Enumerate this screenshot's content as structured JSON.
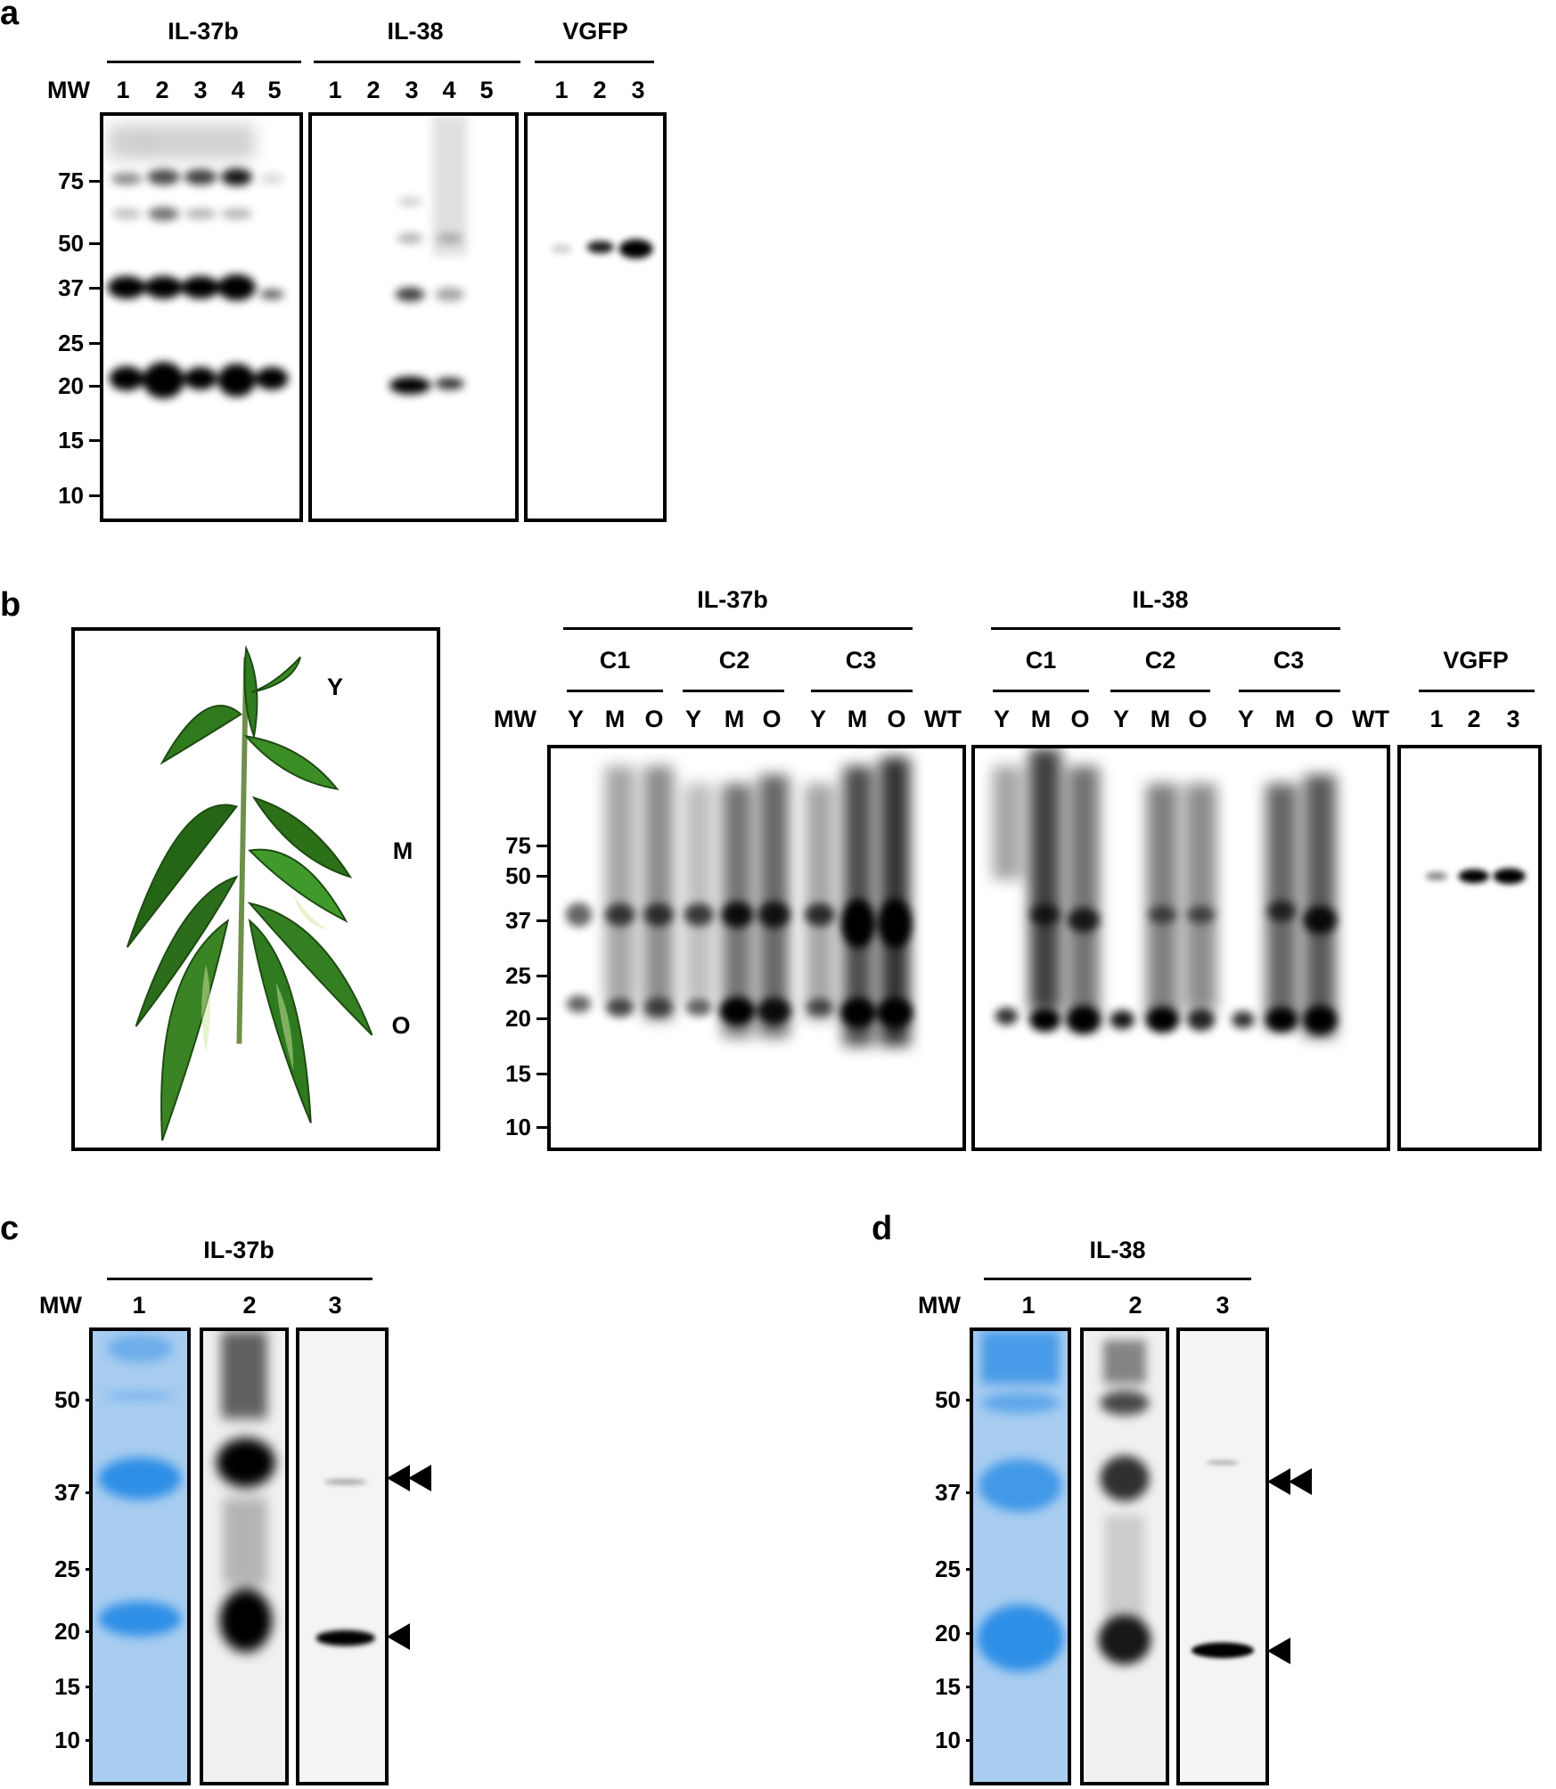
{
  "panel_a": {
    "label": "a",
    "mw_label": "MW",
    "mw_markers": [
      "75",
      "50",
      "37",
      "25",
      "20",
      "15",
      "10"
    ],
    "groups": [
      {
        "name": "IL-37b",
        "lanes": [
          "1",
          "2",
          "3",
          "4",
          "5"
        ]
      },
      {
        "name": "IL-38",
        "lanes": [
          "1",
          "2",
          "3",
          "4",
          "5"
        ]
      },
      {
        "name": "VGFP",
        "lanes": [
          "1",
          "2",
          "3"
        ]
      }
    ]
  },
  "panel_b": {
    "label": "b",
    "plant_labels": {
      "young": "Y",
      "middle": "M",
      "old": "O"
    },
    "mw_label": "MW",
    "mw_markers": [
      "75",
      "50",
      "37",
      "25",
      "20",
      "15",
      "10"
    ],
    "groups": [
      {
        "name": "IL-37b",
        "clones": [
          "C1",
          "C2",
          "C3"
        ],
        "lanes": [
          "Y",
          "M",
          "O",
          "Y",
          "M",
          "O",
          "Y",
          "M",
          "O",
          "WT"
        ]
      },
      {
        "name": "IL-38",
        "clones": [
          "C1",
          "C2",
          "C3"
        ],
        "lanes": [
          "Y",
          "M",
          "O",
          "Y",
          "M",
          "O",
          "Y",
          "M",
          "O",
          "WT"
        ]
      },
      {
        "name": "VGFP",
        "lanes": [
          "1",
          "2",
          "3"
        ]
      }
    ]
  },
  "panel_c": {
    "label": "c",
    "title": "IL-37b",
    "mw_label": "MW",
    "mw_markers": [
      "50",
      "37",
      "25",
      "20",
      "15",
      "10"
    ],
    "lanes": [
      "1",
      "2",
      "3"
    ]
  },
  "panel_d": {
    "label": "d",
    "title": "IL-38",
    "mw_label": "MW",
    "mw_markers": [
      "50",
      "37",
      "25",
      "20",
      "15",
      "10"
    ],
    "lanes": [
      "1",
      "2",
      "3"
    ]
  },
  "colors": {
    "coomassie": "#2f8fe6",
    "band": "#000000"
  }
}
